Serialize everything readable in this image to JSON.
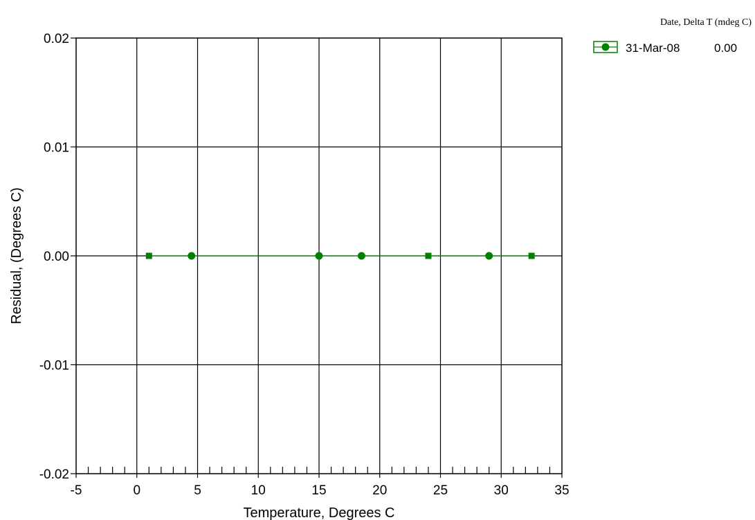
{
  "chart_data": {
    "type": "line",
    "xlabel": "Temperature, Degrees C",
    "ylabel": "Residual, (Degrees C)",
    "xlim": [
      -5,
      35
    ],
    "ylim": [
      -0.02,
      0.02
    ],
    "x_ticks": [
      -5,
      0,
      5,
      10,
      15,
      20,
      25,
      30,
      35
    ],
    "x_tick_labels": [
      "-5",
      "0",
      "5",
      "10",
      "15",
      "20",
      "25",
      "30",
      "35"
    ],
    "y_ticks": [
      -0.02,
      -0.01,
      0.0,
      0.01,
      0.02
    ],
    "y_tick_labels": [
      "-0.02",
      "-0.01",
      "0.00",
      "0.01",
      "0.02"
    ],
    "grid": true,
    "legend": {
      "title": "Date, Delta T (mdeg C)",
      "placement": "top-right-outside",
      "entries": [
        {
          "date": "31-Mar-08",
          "delta_t": "0.00"
        }
      ]
    },
    "series": [
      {
        "color": "#008000",
        "points": [
          {
            "x": 1.0,
            "y": 0.0,
            "marker": "square"
          },
          {
            "x": 4.5,
            "y": 0.0,
            "marker": "circle"
          },
          {
            "x": 15.0,
            "y": 0.0,
            "marker": "circle"
          },
          {
            "x": 18.5,
            "y": 0.0,
            "marker": "circle"
          },
          {
            "x": 24.0,
            "y": 0.0,
            "marker": "square"
          },
          {
            "x": 29.0,
            "y": 0.0,
            "marker": "circle"
          },
          {
            "x": 32.5,
            "y": 0.0,
            "marker": "square"
          }
        ]
      }
    ]
  }
}
